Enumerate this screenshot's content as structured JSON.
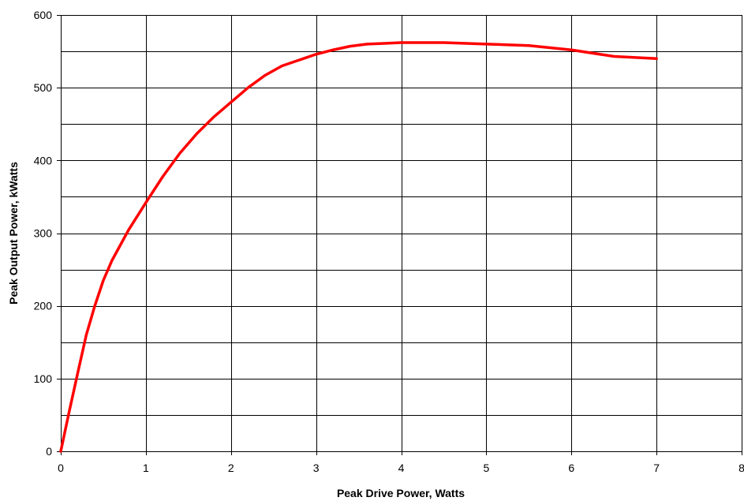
{
  "chart_data": {
    "type": "line",
    "title": "",
    "xlabel": "Peak Drive Power, Watts",
    "ylabel": "Peak Output Power, kWatts",
    "xlim": [
      0,
      8
    ],
    "ylim": [
      0,
      600
    ],
    "x_ticks": [
      "0",
      "1",
      "2",
      "3",
      "4",
      "5",
      "6",
      "7",
      "8"
    ],
    "y_ticks": [
      "0",
      "100",
      "200",
      "300",
      "400",
      "500",
      "600"
    ],
    "grid": true,
    "legend": "none",
    "series": [
      {
        "color": "#ff0000",
        "x": [
          0,
          0.1,
          0.2,
          0.3,
          0.4,
          0.5,
          0.6,
          0.8,
          1.0,
          1.2,
          1.4,
          1.6,
          1.8,
          2.0,
          2.2,
          2.4,
          2.6,
          2.8,
          3.0,
          3.2,
          3.4,
          3.6,
          3.8,
          4.0,
          4.2,
          4.5,
          5.0,
          5.5,
          6.0,
          6.5,
          7.0
        ],
        "y": [
          0,
          55,
          108,
          160,
          200,
          235,
          262,
          305,
          342,
          378,
          410,
          437,
          460,
          480,
          500,
          517,
          530,
          538,
          546,
          552,
          557,
          560,
          561,
          562,
          562,
          562,
          560,
          558,
          552,
          543,
          540
        ]
      }
    ]
  }
}
